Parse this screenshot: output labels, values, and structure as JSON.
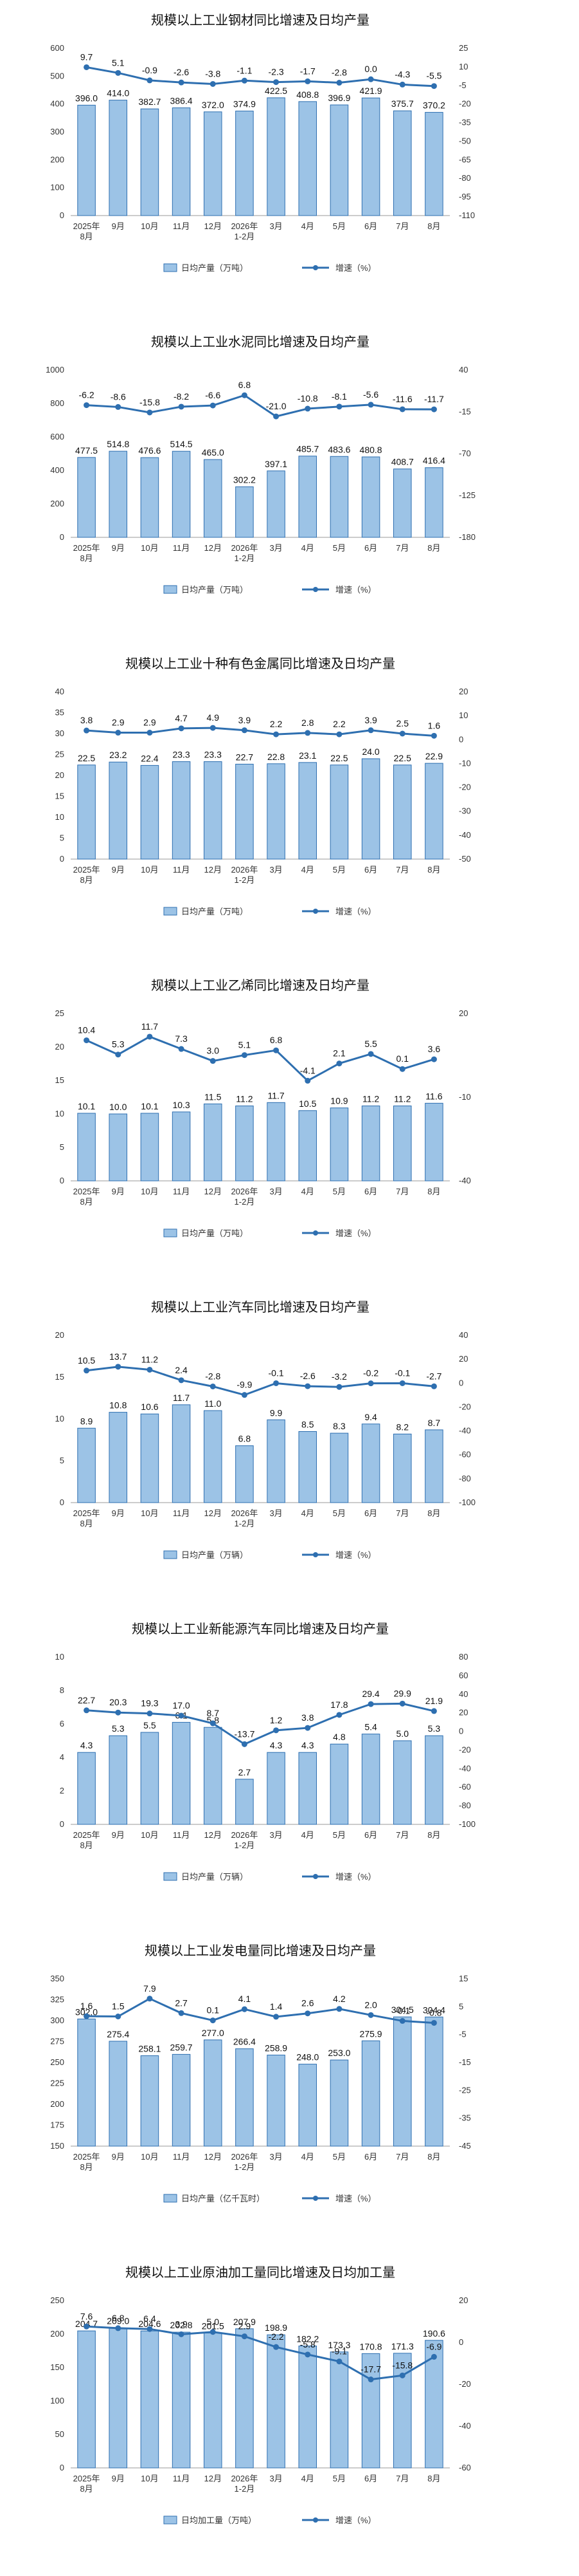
{
  "colors": {
    "bar_fill": "#9CC3E6",
    "bar_stroke": "#2E6FB0",
    "line": "#2E6FB0",
    "marker": "#2E6FB0",
    "axis": "#999999"
  },
  "chart_data": [
    {
      "type": "bar+line",
      "title": "规模以上工业钢材同比增速及日均产量",
      "categories": [
        "2025年|8月",
        "9月",
        "10月",
        "11月",
        "12月",
        "2026年|1-2月",
        "3月",
        "4月",
        "5月",
        "6月",
        "7月",
        "8月"
      ],
      "bars": {
        "name": "日均产量（万吨）",
        "values": [
          396.0,
          414.0,
          382.7,
          386.4,
          372.0,
          374.9,
          422.5,
          408.8,
          396.9,
          421.9,
          375.7,
          370.2
        ]
      },
      "line": {
        "name": "增速（%）",
        "values": [
          9.7,
          5.1,
          -0.9,
          -2.6,
          -3.8,
          -1.1,
          -2.3,
          -1.7,
          -2.8,
          0.0,
          -4.3,
          -5.5
        ]
      },
      "left_axis": {
        "min": 0,
        "max": 600,
        "step": 100
      },
      "right_axis": {
        "min": -110,
        "max": 25,
        "ticks": [
          25,
          10,
          -5,
          -20,
          -35,
          -50,
          -65,
          -80,
          -95,
          -110
        ]
      },
      "legend_position": "bottom"
    },
    {
      "type": "bar+line",
      "title": "规模以上工业水泥同比增速及日均产量",
      "categories": [
        "2025年|8月",
        "9月",
        "10月",
        "11月",
        "12月",
        "2026年|1-2月",
        "3月",
        "4月",
        "5月",
        "6月",
        "7月",
        "8月"
      ],
      "bars": {
        "name": "日均产量（万吨）",
        "values": [
          477.5,
          514.8,
          476.6,
          514.5,
          465.0,
          302.2,
          397.1,
          485.7,
          483.6,
          480.8,
          408.7,
          416.4
        ]
      },
      "line": {
        "name": "增速（%）",
        "values": [
          -6.2,
          -8.6,
          -15.8,
          -8.2,
          -6.6,
          6.8,
          -21.0,
          -10.8,
          -8.1,
          -5.6,
          -11.6,
          -11.7
        ]
      },
      "left_axis": {
        "min": 0,
        "max": 1000,
        "step": 200
      },
      "right_axis": {
        "min": -180,
        "max": 40,
        "ticks": [
          40,
          -15,
          -70,
          -125,
          -180
        ]
      },
      "legend_position": "bottom"
    },
    {
      "type": "bar+line",
      "title": "规模以上工业十种有色金属同比增速及日均产量",
      "categories": [
        "2025年|8月",
        "9月",
        "10月",
        "11月",
        "12月",
        "2026年|1-2月",
        "3月",
        "4月",
        "5月",
        "6月",
        "7月",
        "8月"
      ],
      "bars": {
        "name": "日均产量（万吨）",
        "values": [
          22.5,
          23.2,
          22.4,
          23.3,
          23.3,
          22.7,
          22.8,
          23.1,
          22.5,
          24.0,
          22.5,
          22.9
        ]
      },
      "line": {
        "name": "增速（%）",
        "values": [
          3.8,
          2.9,
          2.9,
          4.7,
          4.9,
          3.9,
          2.2,
          2.8,
          2.2,
          3.9,
          2.5,
          1.6
        ]
      },
      "left_axis": {
        "min": 0,
        "max": 40,
        "step": 5
      },
      "right_axis": {
        "min": -50,
        "max": 20,
        "ticks": [
          20,
          10,
          0,
          -10,
          -20,
          -30,
          -40,
          -50
        ]
      },
      "legend_position": "bottom"
    },
    {
      "type": "bar+line",
      "title": "规模以上工业乙烯同比增速及日均产量",
      "categories": [
        "2025年|8月",
        "9月",
        "10月",
        "11月",
        "12月",
        "2026年|1-2月",
        "3月",
        "4月",
        "5月",
        "6月",
        "7月",
        "8月"
      ],
      "bars": {
        "name": "日均产量（万吨）",
        "values": [
          10.1,
          10.0,
          10.1,
          10.3,
          11.5,
          11.2,
          11.7,
          10.5,
          10.9,
          11.2,
          11.2,
          11.6
        ]
      },
      "line": {
        "name": "增速（%）",
        "values": [
          10.4,
          5.3,
          11.7,
          7.3,
          3.0,
          5.1,
          6.8,
          -4.1,
          2.1,
          5.5,
          0.1,
          3.6
        ]
      },
      "left_axis": {
        "min": 0,
        "max": 25,
        "step": 5
      },
      "right_axis": {
        "min": -40,
        "max": 20,
        "ticks": [
          20,
          -10,
          -40
        ]
      },
      "legend_position": "bottom"
    },
    {
      "type": "bar+line",
      "title": "规模以上工业汽车同比增速及日均产量",
      "categories": [
        "2025年|8月",
        "9月",
        "10月",
        "11月",
        "12月",
        "2026年|1-2月",
        "3月",
        "4月",
        "5月",
        "6月",
        "7月",
        "8月"
      ],
      "bars": {
        "name": "日均产量（万辆）",
        "values": [
          8.9,
          10.8,
          10.6,
          11.7,
          11.0,
          6.8,
          9.9,
          8.5,
          8.3,
          9.4,
          8.2,
          8.7
        ]
      },
      "line": {
        "name": "增速（%）",
        "values": [
          10.5,
          13.7,
          11.2,
          2.4,
          -2.8,
          -9.9,
          -0.1,
          -2.6,
          -3.2,
          -0.2,
          -0.1,
          -2.7
        ]
      },
      "left_axis": {
        "min": 0,
        "max": 20,
        "step": 5
      },
      "right_axis": {
        "min": -100,
        "max": 40,
        "ticks": [
          40,
          20,
          0,
          -20,
          -40,
          -60,
          -80,
          -100
        ]
      },
      "legend_position": "bottom"
    },
    {
      "type": "bar+line",
      "title": "规模以上工业新能源汽车同比增速及日均产量",
      "categories": [
        "2025年|8月",
        "9月",
        "10月",
        "11月",
        "12月",
        "2026年|1-2月",
        "3月",
        "4月",
        "5月",
        "6月",
        "7月",
        "8月"
      ],
      "bars": {
        "name": "日均产量（万辆）",
        "values": [
          4.3,
          5.3,
          5.5,
          6.1,
          5.8,
          2.7,
          4.3,
          4.3,
          4.8,
          5.4,
          5.0,
          5.3
        ]
      },
      "line": {
        "name": "增速（%）",
        "values": [
          22.7,
          20.3,
          19.3,
          17.0,
          8.7,
          -13.7,
          1.2,
          3.8,
          17.8,
          29.4,
          29.9,
          21.9
        ]
      },
      "left_axis": {
        "min": 0,
        "max": 10,
        "step": 2
      },
      "right_axis": {
        "min": -100,
        "max": 80,
        "ticks": [
          80,
          60,
          40,
          20,
          0,
          -20,
          -40,
          -60,
          -80,
          -100
        ]
      },
      "legend_position": "bottom"
    },
    {
      "type": "bar+line",
      "title": "规模以上工业发电量同比增速及日均产量",
      "categories": [
        "2025年|8月",
        "9月",
        "10月",
        "11月",
        "12月",
        "2026年|1-2月",
        "3月",
        "4月",
        "5月",
        "6月",
        "7月",
        "8月"
      ],
      "bars": {
        "name": "日均产量（亿千瓦时）",
        "values": [
          302.0,
          275.4,
          258.1,
          259.7,
          277.0,
          266.4,
          258.9,
          248.0,
          253.0,
          275.9,
          304.5,
          304.4
        ]
      },
      "line": {
        "name": "增速（%）",
        "values": [
          1.6,
          1.5,
          7.9,
          2.7,
          0.1,
          4.1,
          1.4,
          2.6,
          4.2,
          2.0,
          -0.1,
          -0.8
        ]
      },
      "left_axis": {
        "min": 150,
        "max": 350,
        "step": 25
      },
      "right_axis": {
        "min": -45,
        "max": 15,
        "ticks": [
          15,
          5,
          -5,
          -15,
          -25,
          -35,
          -45
        ]
      },
      "legend_position": "bottom"
    },
    {
      "type": "bar+line",
      "title": "规模以上工业原油加工量同比增速及日均加工量",
      "categories": [
        "2025年|8月",
        "9月",
        "10月",
        "11月",
        "12月",
        "2026年|1-2月",
        "3月",
        "4月",
        "5月",
        "6月",
        "7月",
        "8月"
      ],
      "bars": {
        "name": "日均加工量（万吨）",
        "values": [
          204.7,
          209.0,
          204.6,
          202.8,
          201.5,
          207.9,
          198.9,
          182.2,
          173.3,
          170.8,
          171.3,
          190.6
        ]
      },
      "line": {
        "name": "增速（%）",
        "values": [
          7.6,
          6.8,
          6.4,
          3.9,
          5.0,
          2.9,
          -2.2,
          -5.8,
          -9.1,
          -17.7,
          -15.8,
          -6.9
        ]
      },
      "left_axis": {
        "min": 0,
        "max": 250,
        "step": 50
      },
      "right_axis": {
        "min": -60,
        "max": 20,
        "ticks": [
          20,
          0,
          -20,
          -40,
          -60
        ]
      },
      "legend_position": "bottom"
    }
  ]
}
